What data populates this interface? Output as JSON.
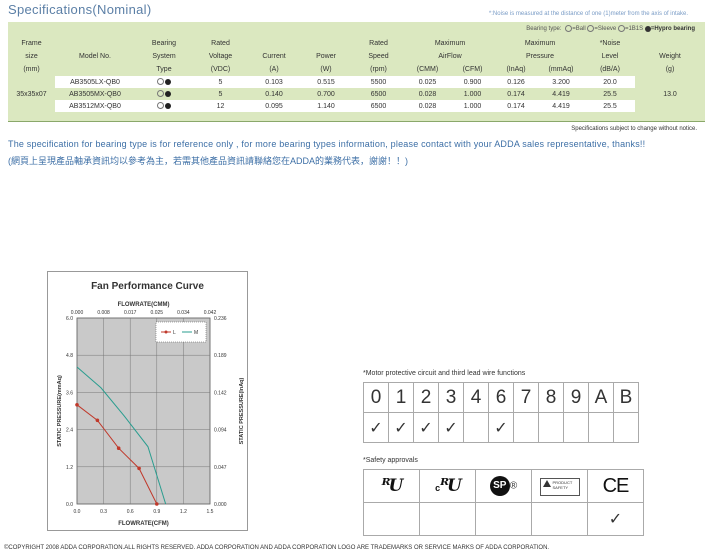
{
  "title": "Specifications(Nominal)",
  "noise_note": "*:Noise is measured at the distance of one (1)meter from the axis of intake.",
  "bearing_legend": {
    "label": "Bearing type:",
    "ball": "=Ball",
    "sleeve": "=Sleeve",
    "s1b1s": "=1B1S",
    "hypro": "=Hypro bearing"
  },
  "table": {
    "header_row1": [
      "Frame",
      "",
      "Bearing",
      "Rated",
      "",
      "",
      "Rated",
      "Maximum",
      "Maximum",
      "*Noise",
      ""
    ],
    "header_row2": [
      "size",
      "Model No.",
      "System",
      "Voltage",
      "Current",
      "Power",
      "Speed",
      "AirFlow",
      "Pressure",
      "Level",
      "Weight"
    ],
    "header_row3": [
      "(mm)",
      "",
      "Type",
      "(VDC)",
      "(A)",
      "(W)",
      "(rpm)",
      "(CMM)",
      "(CFM)",
      "(InAq)",
      "(mmAq)",
      "(dB/A)",
      "(g)"
    ],
    "frame_size": "35x35x07",
    "weight": "13.0",
    "rows": [
      {
        "model": "AB3505LX-QB0",
        "voltage": "5",
        "current": "0.103",
        "power": "0.515",
        "speed": "5500",
        "cmm": "0.025",
        "cfm": "0.900",
        "inaq": "0.126",
        "mmaq": "3.200",
        "noise": "20.0"
      },
      {
        "model": "AB3505MX-QB0",
        "voltage": "5",
        "current": "0.140",
        "power": "0.700",
        "speed": "6500",
        "cmm": "0.028",
        "cfm": "1.000",
        "inaq": "0.174",
        "mmaq": "4.419",
        "noise": "25.5"
      },
      {
        "model": "AB3512MX-QB0",
        "voltage": "12",
        "current": "0.095",
        "power": "1.140",
        "speed": "6500",
        "cmm": "0.028",
        "cfm": "1.000",
        "inaq": "0.174",
        "mmaq": "4.419",
        "noise": "25.5"
      }
    ]
  },
  "subject_note": "Specifications subject to change without notice.",
  "info_en": "The specification for bearing type is for reference only , for more bearing types information, please contact with your ADDA sales representative, thanks!!",
  "info_zh": "(網頁上呈現產品軸承資訊均以參考為主，若需其他產品資訊請聯絡您在ADDA的業務代表，謝謝！！)",
  "curve": {
    "title": "Fan Performance Curve",
    "top_axis_label": "FLOWRATE(CMM)",
    "bottom_axis_label": "FLOWRATE(CFM)",
    "left_axis_label": "STATIC PRESSURE(mmAq)",
    "right_axis_label": "STATIC PRESSURE(InAq)",
    "legend_l": "L",
    "legend_m": "M",
    "colors": {
      "L": "#c0392b",
      "M": "#2a9d8f"
    }
  },
  "chart_data": {
    "type": "line",
    "title": "Fan Performance Curve",
    "xlabel": "FLOWRATE(CFM)",
    "ylabel": "STATIC PRESSURE(mmAq)",
    "x2label": "FLOWRATE(CMM)",
    "y2label": "STATIC PRESSURE(InAq)",
    "xlim": [
      0,
      1.5
    ],
    "ylim": [
      0,
      6.0
    ],
    "x_ticks": [
      "0.0",
      "0.3",
      "0.6",
      "0.9",
      "1.2",
      "1.5"
    ],
    "y_ticks": [
      "0.0",
      "1.2",
      "2.4",
      "3.6",
      "4.8",
      "6.0"
    ],
    "x2_ticks": [
      "0.000",
      "0.008",
      "0.017",
      "0.025",
      "0.034",
      "0.042"
    ],
    "y2_ticks": [
      "0.000",
      "0.047",
      "0.094",
      "0.142",
      "0.189",
      "0.236"
    ],
    "grid": true,
    "legend_placement": "top-right",
    "series": [
      {
        "name": "L",
        "x": [
          0.0,
          0.23,
          0.47,
          0.7,
          0.9
        ],
        "y": [
          3.2,
          2.7,
          1.8,
          1.15,
          0.0
        ]
      },
      {
        "name": "M",
        "x": [
          0.0,
          0.27,
          0.53,
          0.8,
          1.0
        ],
        "y": [
          4.42,
          3.75,
          2.85,
          1.85,
          0.0
        ]
      }
    ]
  },
  "motor": {
    "label": "*Motor protective circuit and third lead wire functions",
    "digits": [
      "0",
      "1",
      "2",
      "3",
      "4",
      "6",
      "7",
      "8",
      "9",
      "A",
      "B"
    ],
    "checks": [
      "✓",
      "✓",
      "✓",
      "✓",
      "",
      "✓",
      "",
      "",
      "",
      "",
      ""
    ]
  },
  "safety": {
    "label": "*Safety approvals",
    "logos": [
      "UL",
      "cUL",
      "CSA",
      "TUV",
      "CE"
    ],
    "ul_text": "ᴿU",
    "cul_c": "c",
    "cul_text": "ᴿU",
    "csa_text": "SP",
    "csa_reg": "®",
    "tuv_line1": "PRODUCT",
    "tuv_line2": "SAFETY",
    "ce_text": "CE",
    "checks": [
      "",
      "",
      "",
      "",
      "✓"
    ]
  },
  "copyright": "©COPYRIGHT 2008 ADDA CORPORATION.ALL RIGHTS RESERVED. ADDA CORPORATION AND ADDA  CORPORATION LOGO ARE TRADEMARKS OR SERVICE MARKS OF ADDA CORPORATION."
}
